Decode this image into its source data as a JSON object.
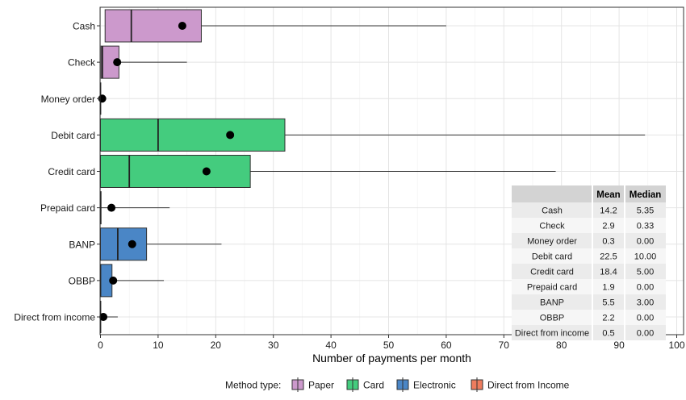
{
  "chart_data": {
    "type": "boxplot",
    "xlabel": "Number of payments per month",
    "xlim": [
      0,
      100
    ],
    "xticks": [
      0,
      10,
      20,
      30,
      40,
      50,
      60,
      70,
      80,
      90,
      100
    ],
    "grid": true,
    "legend": {
      "title": "Method type:",
      "placement": "bottom",
      "items": [
        {
          "label": "Paper",
          "color": "#CC99CC"
        },
        {
          "label": "Card",
          "color": "#44CC7E"
        },
        {
          "label": "Electronic",
          "color": "#4A86C6"
        },
        {
          "label": "Direct from Income",
          "color": "#EE7C5E"
        }
      ]
    },
    "categories": [
      {
        "label": "Cash",
        "type": "Paper",
        "whisker_low": 0.8,
        "q1": 0.8,
        "median": 5.35,
        "q3": 17.5,
        "whisker_high": 60,
        "mean": 14.2
      },
      {
        "label": "Check",
        "type": "Paper",
        "whisker_low": 0.1,
        "q1": 0.1,
        "median": 0.33,
        "q3": 3.2,
        "whisker_high": 15,
        "mean": 2.9
      },
      {
        "label": "Money order",
        "type": "Paper",
        "whisker_low": 0,
        "q1": 0,
        "median": 0,
        "q3": 0,
        "whisker_high": 0,
        "mean": 0.3
      },
      {
        "label": "Debit card",
        "type": "Card",
        "whisker_low": 0,
        "q1": 0,
        "median": 10,
        "q3": 32,
        "whisker_high": 94.5,
        "mean": 22.5
      },
      {
        "label": "Credit card",
        "type": "Card",
        "whisker_low": 0,
        "q1": 0,
        "median": 5,
        "q3": 26,
        "whisker_high": 79,
        "mean": 18.4
      },
      {
        "label": "Prepaid card",
        "type": "Card",
        "whisker_low": 0,
        "q1": 0,
        "median": 0,
        "q3": 0.1,
        "whisker_high": 12,
        "mean": 1.9
      },
      {
        "label": "BANP",
        "type": "Electronic",
        "whisker_low": 0,
        "q1": 0,
        "median": 3,
        "q3": 8,
        "whisker_high": 21,
        "mean": 5.5
      },
      {
        "label": "OBBP",
        "type": "Electronic",
        "whisker_low": 0,
        "q1": 0,
        "median": 0,
        "q3": 2,
        "whisker_high": 11,
        "mean": 2.2
      },
      {
        "label": "Direct from income",
        "type": "Direct from Income",
        "whisker_low": 0,
        "q1": 0,
        "median": 0,
        "q3": 0,
        "whisker_high": 3,
        "mean": 0.5
      }
    ],
    "table": {
      "headers": [
        "",
        "Mean",
        "Median"
      ],
      "rows": [
        [
          "Cash",
          "14.2",
          "5.35"
        ],
        [
          "Check",
          "2.9",
          "0.33"
        ],
        [
          "Money order",
          "0.3",
          "0.00"
        ],
        [
          "Debit card",
          "22.5",
          "10.00"
        ],
        [
          "Credit card",
          "18.4",
          "5.00"
        ],
        [
          "Prepaid card",
          "1.9",
          "0.00"
        ],
        [
          "BANP",
          "5.5",
          "3.00"
        ],
        [
          "OBBP",
          "2.2",
          "0.00"
        ],
        [
          "Direct from income",
          "0.5",
          "0.00"
        ]
      ]
    }
  }
}
